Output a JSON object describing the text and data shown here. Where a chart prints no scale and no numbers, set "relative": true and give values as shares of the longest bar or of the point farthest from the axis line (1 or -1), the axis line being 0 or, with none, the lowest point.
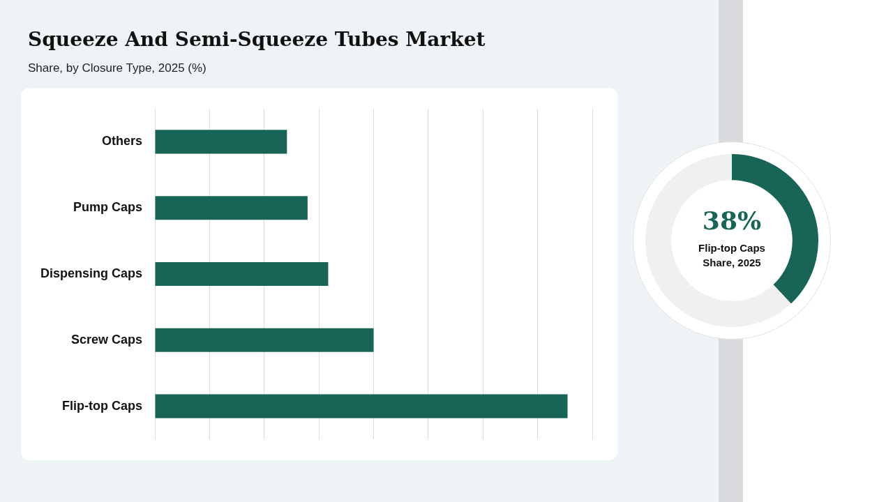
{
  "chart_data": [
    {
      "type": "bar",
      "title": "Squeeze And Semi-Squeeze Tubes Market",
      "subtitle": "Share, by Closure Type, 2025 (%)",
      "orientation": "horizontal",
      "relative": true,
      "grid": "x",
      "legend": false,
      "categories": [
        "Others",
        "Pump Caps",
        "Dispensing Caps",
        "Screw Caps",
        "Flip-top Caps"
      ],
      "values": [
        0.32,
        0.37,
        0.42,
        0.53,
        1
      ],
      "color": "#186456"
    },
    {
      "type": "donut",
      "categories": [
        null,
        null
      ],
      "values": [
        38,
        62
      ],
      "colors": [
        "#186456",
        "#f0f0f0"
      ],
      "legend": false,
      "annotations": [
        "38%",
        "Flip-top Caps Share, 2025"
      ]
    }
  ]
}
